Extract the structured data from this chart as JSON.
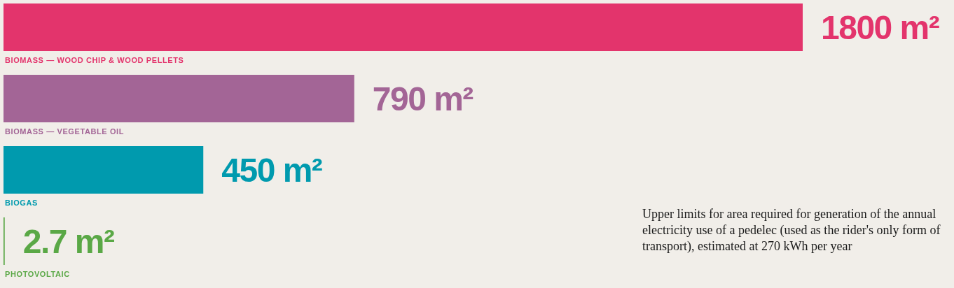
{
  "chart_data": {
    "type": "bar",
    "orientation": "horizontal",
    "categories": [
      "BIOMASS — WOOD CHIP & WOOD PELLETS",
      "BIOMASS — VEGETABLE OIL",
      "BIOGAS",
      "PHOTOVOLTAIC"
    ],
    "values": [
      1800,
      790,
      450,
      2.7
    ],
    "colors": [
      "#e3346c",
      "#a36596",
      "#009aae",
      "#5aa846"
    ],
    "value_labels": [
      "1800 m²",
      "790 m²",
      "450 m²",
      "2.7 m²"
    ],
    "annotations": [
      "Upper limits for area required for generation of the annual electricity use of a pedelec (used as the rider's only form of transport), estimated at 270 kWh per year"
    ]
  }
}
